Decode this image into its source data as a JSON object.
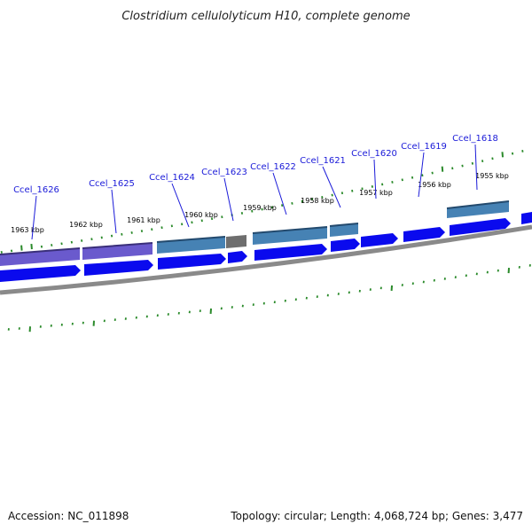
{
  "header": {
    "title": "Clostridium cellulolyticum H10, complete genome"
  },
  "footer": {
    "accession": "Accession: NC_011898",
    "summary": "Topology: circular; Length: 4,068,724 bp; Genes: 3,477"
  },
  "scale_labels": [
    "1963 kbp",
    "1962 kbp",
    "1961 kbp",
    "1960 kbp",
    "1959 kbp",
    "1958 kbp",
    "1957 kbp",
    "1956 kbp",
    "1955 kbp"
  ],
  "genes": [
    "Ccel_1626",
    "Ccel_1625",
    "Ccel_1624",
    "Ccel_1623",
    "Ccel_1622",
    "Ccel_1621",
    "Ccel_1620",
    "Ccel_1619",
    "Ccel_1618"
  ],
  "colors": {
    "tick": "#2a8a2a",
    "label_blue": "#1a1ad8",
    "cds": "#0a0aee",
    "purple": "#6a5acd",
    "steel": "#4682b4",
    "gray": "#6e6e6e",
    "backbone": "#8a8a8a"
  }
}
